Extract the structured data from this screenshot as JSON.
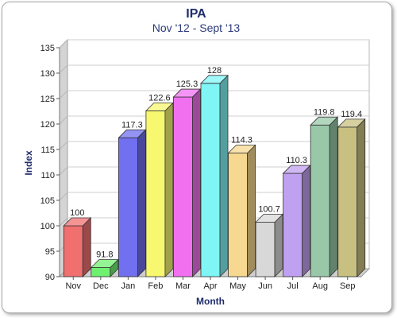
{
  "chart_data": {
    "type": "bar",
    "title": "IPA",
    "subtitle": "Nov '12 - Sept '13",
    "xlabel": "Month",
    "ylabel": "Index",
    "categories": [
      "Nov",
      "Dec",
      "Jan",
      "Feb",
      "Mar",
      "Apr",
      "May",
      "Jun",
      "Jul",
      "Aug",
      "Sep"
    ],
    "values": [
      100,
      91.8,
      117.3,
      122.6,
      125.3,
      128,
      114.3,
      100.7,
      110.3,
      119.8,
      119.4
    ],
    "data_labels": [
      "100",
      "91.8",
      "117.3",
      "122.6",
      "125.3",
      "128",
      "114.3",
      "100.7",
      "110.3",
      "119.8",
      "119.4"
    ],
    "ylim": [
      90,
      135
    ],
    "yticks": [
      "90",
      "95",
      "100",
      "105",
      "110",
      "115",
      "120",
      "125",
      "130",
      "135"
    ],
    "grid": true,
    "colors": [
      "#f07070",
      "#70f070",
      "#7070f0",
      "#f7f770",
      "#f070f0",
      "#80f5f5",
      "#f7d890",
      "#d8d8d8",
      "#c0a0f0",
      "#98c8a8",
      "#c8c080"
    ],
    "background": "#ffffff"
  }
}
